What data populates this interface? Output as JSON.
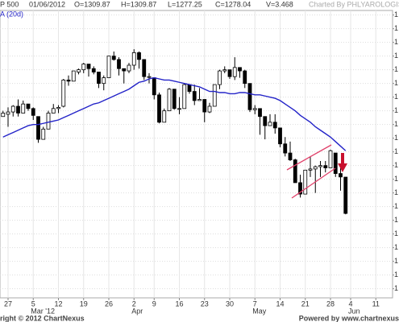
{
  "header": {
    "symbol": "P 500",
    "date": "01/06/2012",
    "items": [
      "O=1309.87",
      "H=1309.87",
      "L=1277.25",
      "C=1278.04",
      "V=3.468"
    ],
    "credit": "Charted By PHLYAROLOGIST"
  },
  "footer": {
    "left": "right © 2012 ChartNexus",
    "right": "Powered by www.chartnexus"
  },
  "chart_data": {
    "type": "candlestick",
    "categories": [
      null,
      "27",
      null,
      null,
      null,
      null,
      "5",
      null,
      null,
      null,
      null,
      "12",
      null,
      null,
      null,
      null,
      "19",
      null,
      null,
      null,
      null,
      "26",
      null,
      null,
      null,
      null,
      "2",
      null,
      null,
      null,
      "9",
      null,
      null,
      null,
      null,
      "16",
      null,
      null,
      null,
      null,
      "23",
      null,
      null,
      null,
      null,
      "30",
      null,
      null,
      null,
      null,
      "7",
      null,
      null,
      null,
      null,
      "14",
      null,
      null,
      null,
      null,
      "21",
      null,
      null,
      null,
      null,
      "28",
      null,
      null,
      null,
      "4",
      null,
      null,
      null,
      null,
      "11",
      null,
      null,
      null
    ],
    "month_labels": [
      null,
      null,
      null,
      null,
      null,
      null,
      "Mar '12",
      null,
      null,
      null,
      null,
      null,
      null,
      null,
      null,
      null,
      null,
      null,
      null,
      null,
      null,
      null,
      null,
      null,
      null,
      null,
      "Apr",
      null,
      null,
      null,
      null,
      null,
      null,
      null,
      null,
      null,
      null,
      null,
      null,
      null,
      null,
      null,
      null,
      null,
      null,
      null,
      null,
      null,
      null,
      null,
      "May",
      null,
      null,
      null,
      null,
      null,
      null,
      null,
      null,
      null,
      null,
      null,
      null,
      null,
      null,
      null,
      null,
      null,
      null,
      "Jun",
      null,
      null,
      null,
      null,
      null,
      null,
      null,
      null
    ],
    "open": [
      1363,
      1365,
      1367,
      1372,
      1366,
      1374,
      1370,
      1363,
      1343,
      1352,
      1366,
      1370,
      1372,
      1395,
      1394,
      1402,
      1404,
      1409,
      1405,
      1402,
      1392,
      1397,
      1416,
      1413,
      1405,
      1403,
      1408,
      1419,
      1413,
      1398,
      1397,
      1382,
      1358,
      1368,
      1387,
      1370,
      1370,
      1391,
      1385,
      1377,
      1378,
      1367,
      1372,
      1391,
      1403,
      1404,
      1398,
      1406,
      1403,
      1392,
      1369,
      1370,
      1363,
      1355,
      1358,
      1353,
      1339,
      1331,
      1325,
      1305,
      1295,
      1316,
      1317,
      1319,
      1320,
      1318,
      1331,
      1313,
      1309.87,
      null,
      null,
      null,
      null,
      null,
      null,
      null,
      null,
      null
    ],
    "high": [
      1368,
      1371,
      1373,
      1378,
      1377,
      1374,
      1371,
      1363,
      1354,
      1368,
      1374,
      1373,
      1396,
      1399,
      1403,
      1405,
      1410,
      1409,
      1407,
      1402,
      1399,
      1416,
      1420,
      1415,
      1405,
      1410,
      1422,
      1420,
      1413,
      1401,
      1397,
      1384,
      1370,
      1388,
      1387,
      1380,
      1392,
      1391,
      1391,
      1388,
      1378,
      1375,
      1391,
      1404,
      1407,
      1404,
      1415,
      1406,
      1404,
      1392,
      1373,
      1370,
      1363,
      1365,
      1365,
      1353,
      1345,
      1341,
      1326,
      1312,
      1316,
      1328,
      1320,
      1324,
      1324,
      1334,
      1331,
      1319,
      1309.87,
      null,
      null,
      null,
      null,
      null,
      null,
      null,
      null,
      null
    ],
    "low": [
      1363,
      1354,
      1363,
      1363,
      1366,
      1368,
      1360,
      1340,
      1343,
      1352,
      1366,
      1366,
      1371,
      1390,
      1394,
      1400,
      1401,
      1398,
      1400,
      1388,
      1386,
      1397,
      1412,
      1399,
      1392,
      1401,
      1404,
      1405,
      1395,
      1392,
      1378,
      1357,
      1358,
      1368,
      1369,
      1365,
      1370,
      1383,
      1373,
      1377,
      1358,
      1366,
      1372,
      1387,
      1401,
      1396,
      1395,
      1397,
      1388,
      1367,
      1365,
      1347,
      1343,
      1355,
      1348,
      1336,
      1328,
      1324,
      1305,
      1292,
      1295,
      1310,
      1296,
      1310,
      1314,
      1318,
      1310,
      1298,
      1277.25,
      null,
      null,
      null,
      null,
      null,
      null,
      null,
      null,
      null
    ],
    "close": [
      1366,
      1367,
      1372,
      1366,
      1374,
      1370,
      1364,
      1343,
      1352,
      1366,
      1370,
      1371,
      1395,
      1394,
      1403,
      1404,
      1409,
      1405,
      1402,
      1392,
      1397,
      1416,
      1413,
      1405,
      1403,
      1408,
      1419,
      1413,
      1398,
      1398,
      1382,
      1358,
      1368,
      1387,
      1370,
      1370,
      1391,
      1385,
      1377,
      1378,
      1367,
      1372,
      1391,
      1403,
      1404,
      1398,
      1406,
      1403,
      1392,
      1369,
      1370,
      1363,
      1355,
      1358,
      1353,
      1339,
      1331,
      1325,
      1305,
      1295,
      1316,
      1317,
      1319,
      1320,
      1318,
      1333,
      1313,
      1310,
      1278.04,
      null,
      null,
      null,
      null,
      null,
      null,
      null,
      null,
      null
    ],
    "up_color": "#ffffff",
    "down_color": "#000000",
    "wick_color": "#000000",
    "series": [
      {
        "name": "A (20d)",
        "color": "#2323c8",
        "values": [
          1345,
          1347,
          1349,
          1351,
          1353,
          1355,
          1356,
          1356,
          1357,
          1358,
          1359,
          1360,
          1362,
          1364,
          1366,
          1368,
          1370,
          1372,
          1374,
          1375,
          1377,
          1379,
          1381,
          1383,
          1385,
          1387,
          1390,
          1393,
          1394,
          1396,
          1397,
          1396,
          1395,
          1395,
          1394,
          1393,
          1392,
          1391,
          1390,
          1389,
          1387,
          1385,
          1385,
          1384,
          1384,
          1383,
          1383,
          1384,
          1384,
          1383,
          1382,
          1382,
          1381,
          1380,
          1379,
          1377,
          1374,
          1371,
          1368,
          1364,
          1361,
          1358,
          1354,
          1351,
          1348,
          1345,
          1341,
          1337,
          1333,
          null,
          null,
          null,
          null,
          null,
          null,
          null,
          null,
          null
        ]
      }
    ],
    "ylim": [
      1204,
      1456
    ],
    "yticks": [
      {
        "value": 1452,
        "label": "1"
      },
      {
        "value": 1440,
        "label": "1"
      },
      {
        "value": 1428,
        "label": "1"
      },
      {
        "value": 1416,
        "label": "1"
      },
      {
        "value": 1404,
        "label": "1"
      },
      {
        "value": 1392,
        "label": "1"
      },
      {
        "value": 1380,
        "label": "1"
      },
      {
        "value": 1368,
        "label": "1"
      },
      {
        "value": 1356,
        "label": "1"
      },
      {
        "value": 1344,
        "label": "1"
      },
      {
        "value": 1332,
        "label": "1"
      },
      {
        "value": 1320,
        "label": "1"
      },
      {
        "value": 1308,
        "label": "1"
      },
      {
        "value": 1296,
        "label": "1"
      },
      {
        "value": 1284,
        "label": "1"
      },
      {
        "value": 1272,
        "label": "1"
      },
      {
        "value": 1260,
        "label": "1"
      },
      {
        "value": 1248,
        "label": "1"
      },
      {
        "value": 1236,
        "label": "1"
      },
      {
        "value": 1224,
        "label": "1"
      },
      {
        "value": 1212,
        "label": "1"
      }
    ],
    "grid": true
  }
}
